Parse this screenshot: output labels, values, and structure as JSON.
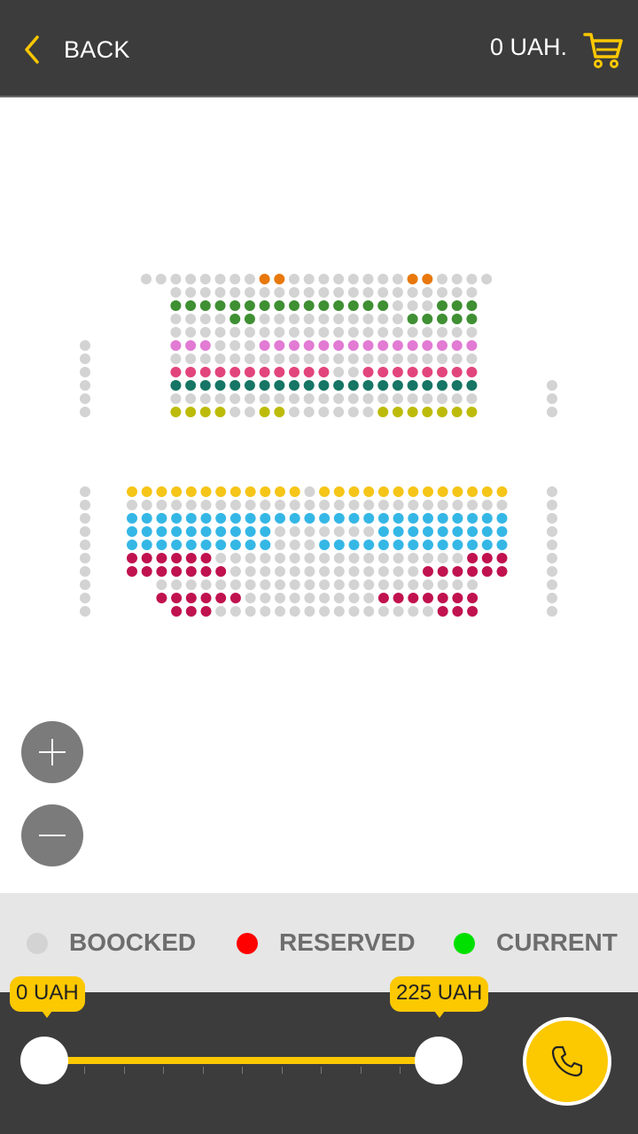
{
  "header": {
    "back_label": "BACK",
    "total_price": "0 UAH.",
    "back_icon": "chevron-left-icon",
    "cart_icon": "shopping-cart-icon"
  },
  "seatmap": {
    "colors": {
      "booked": "#d3d3d3",
      "orange": "#e8780c",
      "green": "#3f8f33",
      "pink": "#e27bd3",
      "magenta": "#e2457c",
      "teal": "#167564",
      "olive": "#bdbb09",
      "yellow": "#f5c518",
      "blue": "#35b7e6",
      "crimson": "#c0124f"
    },
    "zoom_in_icon": "plus-icon",
    "zoom_out_icon": "minus-icon"
  },
  "legend": {
    "items": [
      {
        "label": "BOOCKED",
        "color": "#d3d3d3"
      },
      {
        "label": "RESERVED",
        "color": "#ff0000"
      },
      {
        "label": "CURRENT",
        "color": "#00e000"
      }
    ]
  },
  "price_filter": {
    "min_label": "0 UAH",
    "max_label": "225 UAH",
    "min_value": 0,
    "max_value": 225
  },
  "call_button": {
    "icon": "phone-icon"
  }
}
